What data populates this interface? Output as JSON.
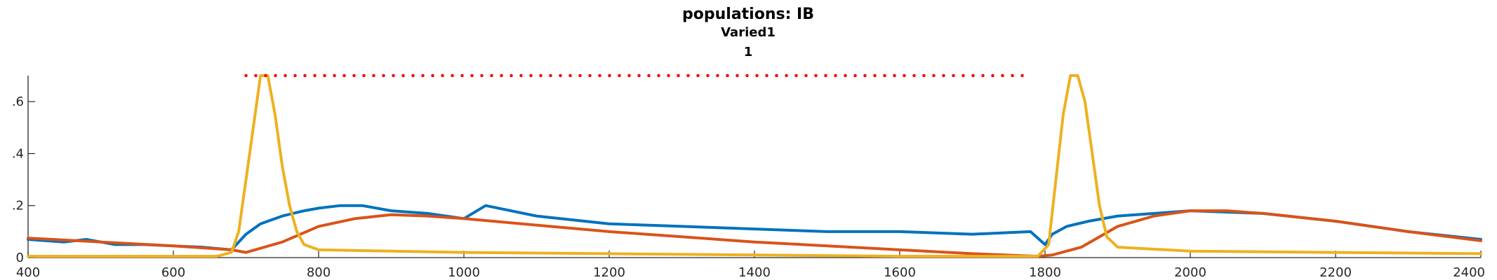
{
  "chart_data": {
    "type": "line",
    "title": "populations: IB",
    "subtitle": "Varied1",
    "subtitle2": "1",
    "xlabel": "",
    "ylabel": "",
    "xlim": [
      400,
      2400
    ],
    "ylim": [
      0,
      0.7
    ],
    "xticks": [
      400,
      600,
      800,
      1000,
      1200,
      1400,
      1600,
      1800,
      2000,
      2200,
      2400
    ],
    "yticks": [
      0,
      0.2,
      0.4,
      0.6
    ],
    "ytick_labels": [
      "0",
      "0.2",
      "0.4",
      "0.6"
    ],
    "grid": false,
    "legend": "none",
    "series": [
      {
        "color": "#0072BD",
        "style": "solid",
        "x": [
          400,
          450,
          480,
          520,
          560,
          600,
          640,
          680,
          700,
          720,
          750,
          780,
          800,
          830,
          860,
          900,
          950,
          1000,
          1030,
          1100,
          1200,
          1300,
          1400,
          1500,
          1600,
          1700,
          1780,
          1800,
          1810,
          1830,
          1860,
          1900,
          1950,
          2000,
          2100,
          2200,
          2300,
          2400
        ],
        "y": [
          0.07,
          0.06,
          0.07,
          0.05,
          0.05,
          0.045,
          0.04,
          0.03,
          0.09,
          0.13,
          0.16,
          0.18,
          0.19,
          0.2,
          0.2,
          0.18,
          0.17,
          0.15,
          0.2,
          0.16,
          0.13,
          0.12,
          0.11,
          0.1,
          0.1,
          0.09,
          0.1,
          0.05,
          0.09,
          0.12,
          0.14,
          0.16,
          0.17,
          0.18,
          0.17,
          0.14,
          0.1,
          0.07
        ]
      },
      {
        "color": "#D95319",
        "style": "solid",
        "x": [
          400,
          500,
          600,
          680,
          700,
          750,
          800,
          850,
          900,
          950,
          1000,
          1100,
          1200,
          1300,
          1400,
          1500,
          1600,
          1700,
          1790,
          1810,
          1850,
          1900,
          1950,
          2000,
          2050,
          2100,
          2200,
          2300,
          2400
        ],
        "y": [
          0.075,
          0.06,
          0.045,
          0.03,
          0.02,
          0.06,
          0.12,
          0.15,
          0.165,
          0.16,
          0.15,
          0.125,
          0.1,
          0.08,
          0.06,
          0.045,
          0.03,
          0.015,
          0.005,
          0.01,
          0.04,
          0.12,
          0.16,
          0.18,
          0.18,
          0.17,
          0.14,
          0.1,
          0.065
        ]
      },
      {
        "color": "#EDB120",
        "style": "solid",
        "x": [
          400,
          500,
          600,
          660,
          680,
          690,
          700,
          710,
          720,
          730,
          740,
          750,
          760,
          770,
          780,
          800,
          900,
          1000,
          1200,
          1400,
          1600,
          1700,
          1790,
          1805,
          1815,
          1825,
          1835,
          1845,
          1855,
          1865,
          1875,
          1885,
          1900,
          2000,
          2200,
          2400
        ],
        "y": [
          0.005,
          0.005,
          0.005,
          0.005,
          0.02,
          0.1,
          0.3,
          0.5,
          0.7,
          0.7,
          0.55,
          0.35,
          0.2,
          0.1,
          0.05,
          0.03,
          0.025,
          0.02,
          0.015,
          0.01,
          0.005,
          0.005,
          0.005,
          0.05,
          0.3,
          0.55,
          0.7,
          0.7,
          0.6,
          0.4,
          0.2,
          0.08,
          0.04,
          0.025,
          0.02,
          0.015
        ]
      },
      {
        "color": "#FF0000",
        "style": "dotted",
        "x": [
          700,
          1780
        ],
        "y": [
          0.7,
          0.7
        ]
      }
    ]
  }
}
